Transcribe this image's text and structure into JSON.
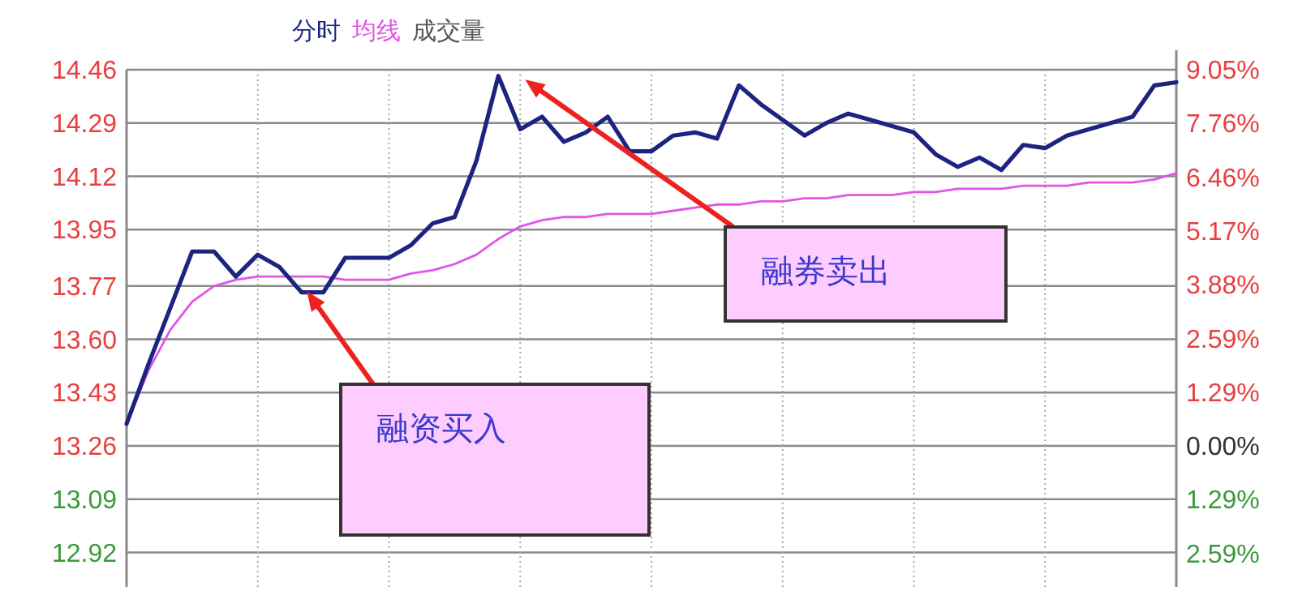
{
  "chart_data": {
    "type": "line",
    "grid": true,
    "categories": [
      null,
      null,
      null,
      null,
      null,
      null,
      null,
      null,
      null,
      null,
      null,
      null,
      null,
      null,
      null,
      null,
      null,
      null,
      null,
      null,
      null,
      null,
      null,
      null,
      null,
      null,
      null,
      null,
      null,
      null,
      null,
      null,
      null,
      null,
      null,
      null,
      null,
      null,
      null,
      null,
      null,
      null,
      null,
      null,
      null,
      null,
      null,
      null,
      null
    ],
    "ylim": [
      12.81,
      14.46
    ],
    "yticks": [
      {
        "value": 12.92,
        "label": "12.92"
      },
      {
        "value": 13.09,
        "label": "13.09"
      },
      {
        "value": 13.26,
        "label": "13.26"
      },
      {
        "value": 13.43,
        "label": "13.43"
      },
      {
        "value": 13.6,
        "label": "13.60"
      },
      {
        "value": 13.77,
        "label": "13.77"
      },
      {
        "value": 13.95,
        "label": "13.95"
      },
      {
        "value": 14.12,
        "label": "14.12"
      },
      {
        "value": 14.29,
        "label": "14.29"
      },
      {
        "value": 14.46,
        "label": "14.46"
      }
    ],
    "y2lim": [
      -3.39,
      9.05
    ],
    "y2ticks": [
      {
        "value": -2.59,
        "label": "2.59%"
      },
      {
        "value": -1.29,
        "label": "1.29%"
      },
      {
        "value": 0,
        "label": "0.00%"
      },
      {
        "value": 1.29,
        "label": "1.29%"
      },
      {
        "value": 2.59,
        "label": "2.59%"
      },
      {
        "value": 3.88,
        "label": "3.88%"
      },
      {
        "value": 5.17,
        "label": "5.17%"
      },
      {
        "value": 6.46,
        "label": "6.46%"
      },
      {
        "value": 7.76,
        "label": "7.76%"
      },
      {
        "value": 9.05,
        "label": "9.05%"
      }
    ],
    "series": [
      {
        "name": "分时",
        "color": "#1c2480",
        "values": [
          13.33,
          13.52,
          13.7,
          13.88,
          13.88,
          13.8,
          13.87,
          13.83,
          13.75,
          13.75,
          13.86,
          13.86,
          13.86,
          13.9,
          13.97,
          13.99,
          14.17,
          14.44,
          14.27,
          14.31,
          14.23,
          14.26,
          14.31,
          14.2,
          14.2,
          14.25,
          14.26,
          14.24,
          14.41,
          14.35,
          14.3,
          14.25,
          14.29,
          14.32,
          14.3,
          14.28,
          14.26,
          14.19,
          14.15,
          14.18,
          14.14,
          14.22,
          14.21,
          14.25,
          14.27,
          14.29,
          14.31,
          14.41,
          14.42
        ]
      },
      {
        "name": "均线",
        "color": "#e055e8",
        "values": [
          13.33,
          13.5,
          13.63,
          13.72,
          13.77,
          13.79,
          13.8,
          13.8,
          13.8,
          13.8,
          13.79,
          13.79,
          13.79,
          13.81,
          13.82,
          13.84,
          13.87,
          13.92,
          13.96,
          13.98,
          13.99,
          13.99,
          14.0,
          14.0,
          14.0,
          14.01,
          14.02,
          14.03,
          14.03,
          14.04,
          14.04,
          14.05,
          14.05,
          14.06,
          14.06,
          14.06,
          14.07,
          14.07,
          14.08,
          14.08,
          14.08,
          14.09,
          14.09,
          14.09,
          14.1,
          14.1,
          14.1,
          14.11,
          14.13
        ]
      }
    ],
    "annotations": [
      "成交量",
      "融资买入",
      "融券卖出"
    ]
  }
}
